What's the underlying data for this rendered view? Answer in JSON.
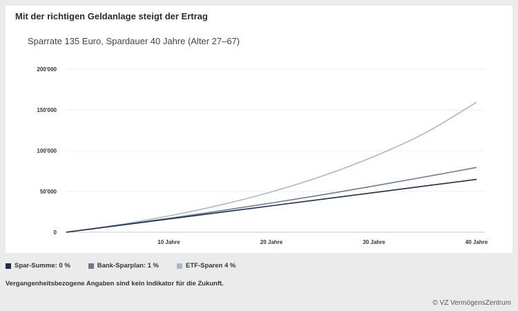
{
  "chart_data": {
    "type": "line",
    "title": "Mit der richtigen Geldanlage steigt der Ertrag",
    "subtitle": "Sparrate 135 Euro, Spardauer 40 Jahre (Alter 27–67)",
    "x": [
      0,
      5,
      10,
      15,
      20,
      25,
      30,
      35,
      40
    ],
    "xticks": [
      10,
      20,
      30,
      40
    ],
    "xtick_labels": [
      "10 Jahre",
      "20 Jahre",
      "30 Jahre",
      "40 Jahre"
    ],
    "xlim": [
      0,
      40
    ],
    "ylim": [
      0,
      200000
    ],
    "yticks": [
      0,
      50000,
      100000,
      150000,
      200000
    ],
    "ytick_labels": [
      "0",
      "50'000",
      "100'000",
      "150'000",
      "200'000"
    ],
    "grid": true,
    "legend": "bottom-left",
    "series": [
      {
        "name": "Spar-Summe: 0 %",
        "color": "#1b2f52",
        "values": [
          0,
          8100,
          16200,
          24300,
          32400,
          40500,
          48600,
          56700,
          64800
        ]
      },
      {
        "name": "Bank-Sparplan: 1 %",
        "color": "#6d7b8d",
        "values": [
          0,
          8300,
          17000,
          26200,
          35800,
          45900,
          56700,
          67900,
          79400
        ]
      },
      {
        "name": "ETF-Sparen 4 %",
        "color": "#a9b7c8",
        "values": [
          0,
          9000,
          20000,
          33300,
          49500,
          69100,
          92900,
          121800,
          159400
        ]
      }
    ]
  },
  "footer": {
    "note": "Vergangenheitsbezogene Angaben sind kein Indikator für die Zukunft.",
    "copyright": "© VZ VermögensZentrum"
  }
}
